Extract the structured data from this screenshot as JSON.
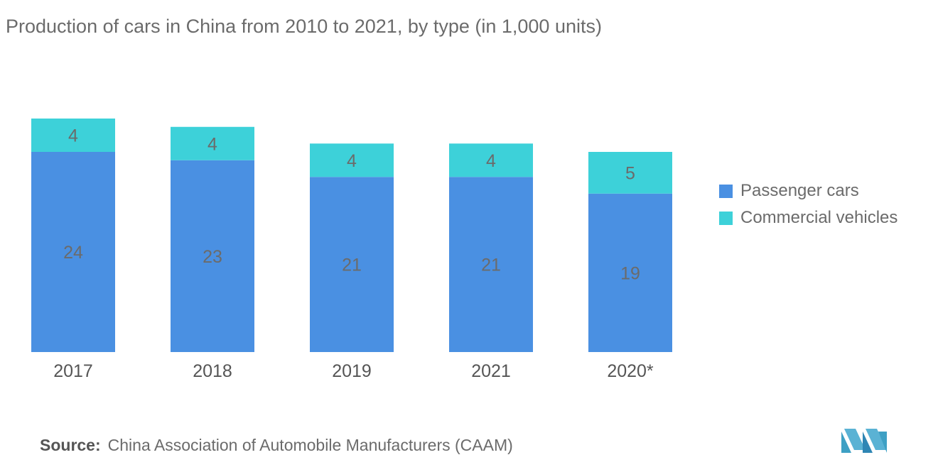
{
  "title": "Production of cars in China from 2010 to 2021, by type (in 1,000 units)",
  "source": {
    "label": "Source:",
    "text": "China Association of Automobile Manufacturers (CAAM)"
  },
  "colors": {
    "passenger": "#4a90e2",
    "commercial": "#3dd1d9",
    "text": "#6b6b6b",
    "logo": "#5aa6c8"
  },
  "chart_data": {
    "type": "bar",
    "stacked": true,
    "categories": [
      "2017",
      "2018",
      "2019",
      "2021",
      "2020*"
    ],
    "series": [
      {
        "name": "Passenger cars",
        "values": [
          24,
          23,
          21,
          21,
          19
        ],
        "color": "#4a90e2"
      },
      {
        "name": "Commercial vehicles",
        "values": [
          4,
          4,
          4,
          4,
          5
        ],
        "color": "#3dd1d9"
      }
    ],
    "legend_position": "right",
    "grid": false
  }
}
